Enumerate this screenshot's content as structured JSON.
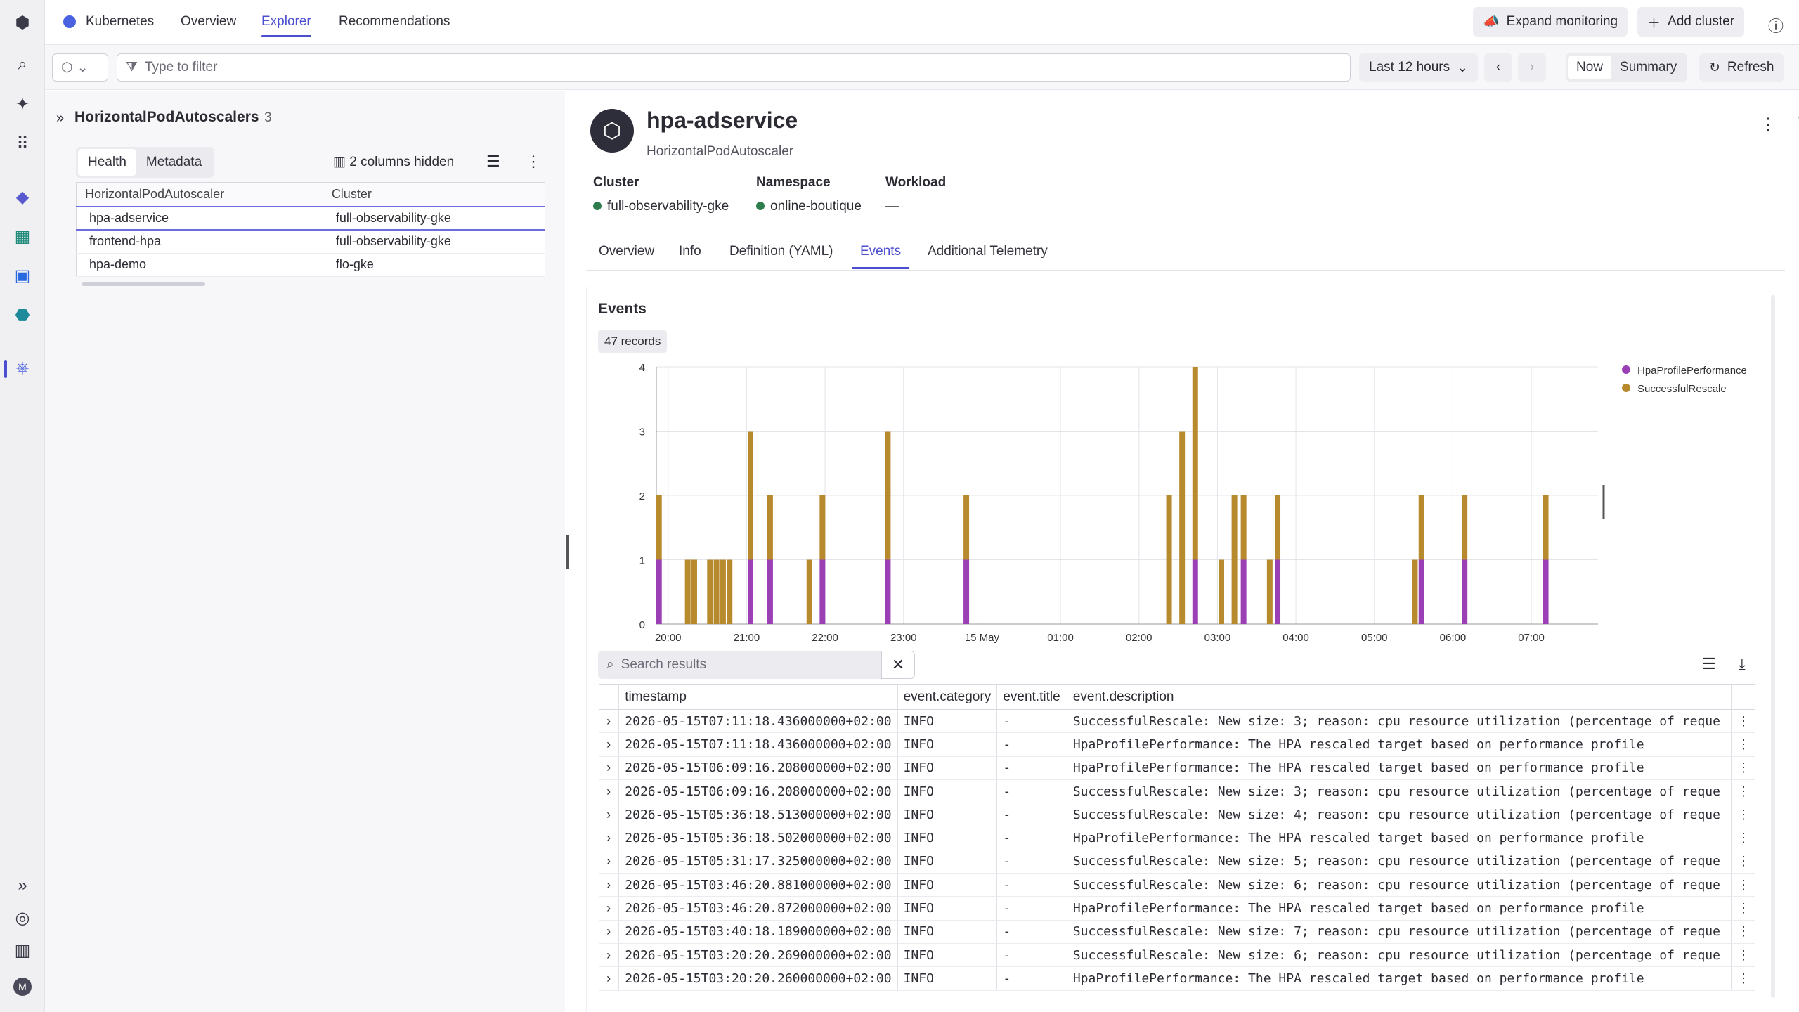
{
  "nav": {
    "app": "Kubernetes",
    "tabs": [
      "Overview",
      "Explorer",
      "Recommendations"
    ],
    "expand": "Expand monitoring",
    "add": "Add cluster"
  },
  "filter": {
    "placeholder": "Type to filter",
    "timeframe": "Last 12 hours",
    "now": "Now",
    "summary": "Summary",
    "refresh": "Refresh"
  },
  "left": {
    "title": "HorizontalPodAutoscalers",
    "count": "3",
    "seg": [
      "Health",
      "Metadata"
    ],
    "hidden": "2 columns hidden",
    "columns": [
      "HorizontalPodAutoscaler",
      "Cluster"
    ],
    "rows": [
      [
        "hpa-adservice",
        "full-observability-gke"
      ],
      [
        "frontend-hpa",
        "full-observability-gke"
      ],
      [
        "hpa-demo",
        "flo-gke"
      ]
    ]
  },
  "detail": {
    "name": "hpa-adservice",
    "kind": "HorizontalPodAutoscaler",
    "meta": {
      "cluster_label": "Cluster",
      "cluster": "full-observability-gke",
      "ns_label": "Namespace",
      "ns": "online-boutique",
      "wl_label": "Workload",
      "wl": "—"
    },
    "tabs": [
      "Overview",
      "Info",
      "Definition (YAML)",
      "Events",
      "Additional Telemetry"
    ]
  },
  "events": {
    "title": "Events",
    "records": "47 records",
    "search_placeholder": "Search results",
    "columns": [
      "timestamp",
      "event.category",
      "event.title",
      "event.description"
    ],
    "rows": [
      [
        "2026-05-15T07:11:18.436000000+02:00",
        "INFO",
        "-",
        "SuccessfulRescale: New size: 3; reason: cpu resource utilization (percentage of reque"
      ],
      [
        "2026-05-15T07:11:18.436000000+02:00",
        "INFO",
        "-",
        "HpaProfilePerformance: The HPA rescaled target based on performance profile"
      ],
      [
        "2026-05-15T06:09:16.208000000+02:00",
        "INFO",
        "-",
        "HpaProfilePerformance: The HPA rescaled target based on performance profile"
      ],
      [
        "2026-05-15T06:09:16.208000000+02:00",
        "INFO",
        "-",
        "SuccessfulRescale: New size: 3; reason: cpu resource utilization (percentage of reque"
      ],
      [
        "2026-05-15T05:36:18.513000000+02:00",
        "INFO",
        "-",
        "SuccessfulRescale: New size: 4; reason: cpu resource utilization (percentage of reque"
      ],
      [
        "2026-05-15T05:36:18.502000000+02:00",
        "INFO",
        "-",
        "HpaProfilePerformance: The HPA rescaled target based on performance profile"
      ],
      [
        "2026-05-15T05:31:17.325000000+02:00",
        "INFO",
        "-",
        "SuccessfulRescale: New size: 5; reason: cpu resource utilization (percentage of reque"
      ],
      [
        "2026-05-15T03:46:20.881000000+02:00",
        "INFO",
        "-",
        "SuccessfulRescale: New size: 6; reason: cpu resource utilization (percentage of reque"
      ],
      [
        "2026-05-15T03:46:20.872000000+02:00",
        "INFO",
        "-",
        "HpaProfilePerformance: The HPA rescaled target based on performance profile"
      ],
      [
        "2026-05-15T03:40:18.189000000+02:00",
        "INFO",
        "-",
        "SuccessfulRescale: New size: 7; reason: cpu resource utilization (percentage of reque"
      ],
      [
        "2026-05-15T03:20:20.269000000+02:00",
        "INFO",
        "-",
        "SuccessfulRescale: New size: 6; reason: cpu resource utilization (percentage of reque"
      ],
      [
        "2026-05-15T03:20:20.260000000+02:00",
        "INFO",
        "-",
        "HpaProfilePerformance: The HPA rescaled target based on performance profile"
      ]
    ]
  },
  "chart_data": {
    "type": "bar",
    "stacked": true,
    "x_ticks": [
      "20:00",
      "21:00",
      "22:00",
      "23:00",
      "15 May",
      "01:00",
      "02:00",
      "03:00",
      "04:00",
      "05:00",
      "06:00",
      "07:00"
    ],
    "ylim": [
      0,
      4
    ],
    "y_ticks": [
      0,
      1,
      2,
      3,
      4
    ],
    "legend_position": "top-right",
    "series": [
      {
        "name": "HpaProfilePerformance",
        "color": "#9b3fb5"
      },
      {
        "name": "SuccessfulRescale",
        "color": "#b88a2e"
      }
    ],
    "bars": [
      {
        "x": "19:53",
        "hpa": 1,
        "res": 1
      },
      {
        "x": "20:15",
        "hpa": 0,
        "res": 1
      },
      {
        "x": "20:20",
        "hpa": 0,
        "res": 1
      },
      {
        "x": "20:32",
        "hpa": 0,
        "res": 1
      },
      {
        "x": "20:37",
        "hpa": 0,
        "res": 1
      },
      {
        "x": "20:42",
        "hpa": 0,
        "res": 1
      },
      {
        "x": "20:47",
        "hpa": 0,
        "res": 1
      },
      {
        "x": "21:03",
        "hpa": 1,
        "res": 2
      },
      {
        "x": "21:18",
        "hpa": 1,
        "res": 1
      },
      {
        "x": "21:48",
        "hpa": 0,
        "res": 1
      },
      {
        "x": "21:58",
        "hpa": 1,
        "res": 1
      },
      {
        "x": "22:48",
        "hpa": 1,
        "res": 2
      },
      {
        "x": "23:48",
        "hpa": 1,
        "res": 1
      },
      {
        "x": "02:23",
        "hpa": 0,
        "res": 2
      },
      {
        "x": "02:33",
        "hpa": 0,
        "res": 3
      },
      {
        "x": "02:43",
        "hpa": 1,
        "res": 3
      },
      {
        "x": "03:03",
        "hpa": 0,
        "res": 1
      },
      {
        "x": "03:13",
        "hpa": 0,
        "res": 2
      },
      {
        "x": "03:20",
        "hpa": 1,
        "res": 1
      },
      {
        "x": "03:40",
        "hpa": 0,
        "res": 1
      },
      {
        "x": "03:46",
        "hpa": 1,
        "res": 1
      },
      {
        "x": "05:31",
        "hpa": 0,
        "res": 1
      },
      {
        "x": "05:36",
        "hpa": 1,
        "res": 1
      },
      {
        "x": "06:09",
        "hpa": 1,
        "res": 1
      },
      {
        "x": "07:11",
        "hpa": 1,
        "res": 1
      }
    ]
  }
}
